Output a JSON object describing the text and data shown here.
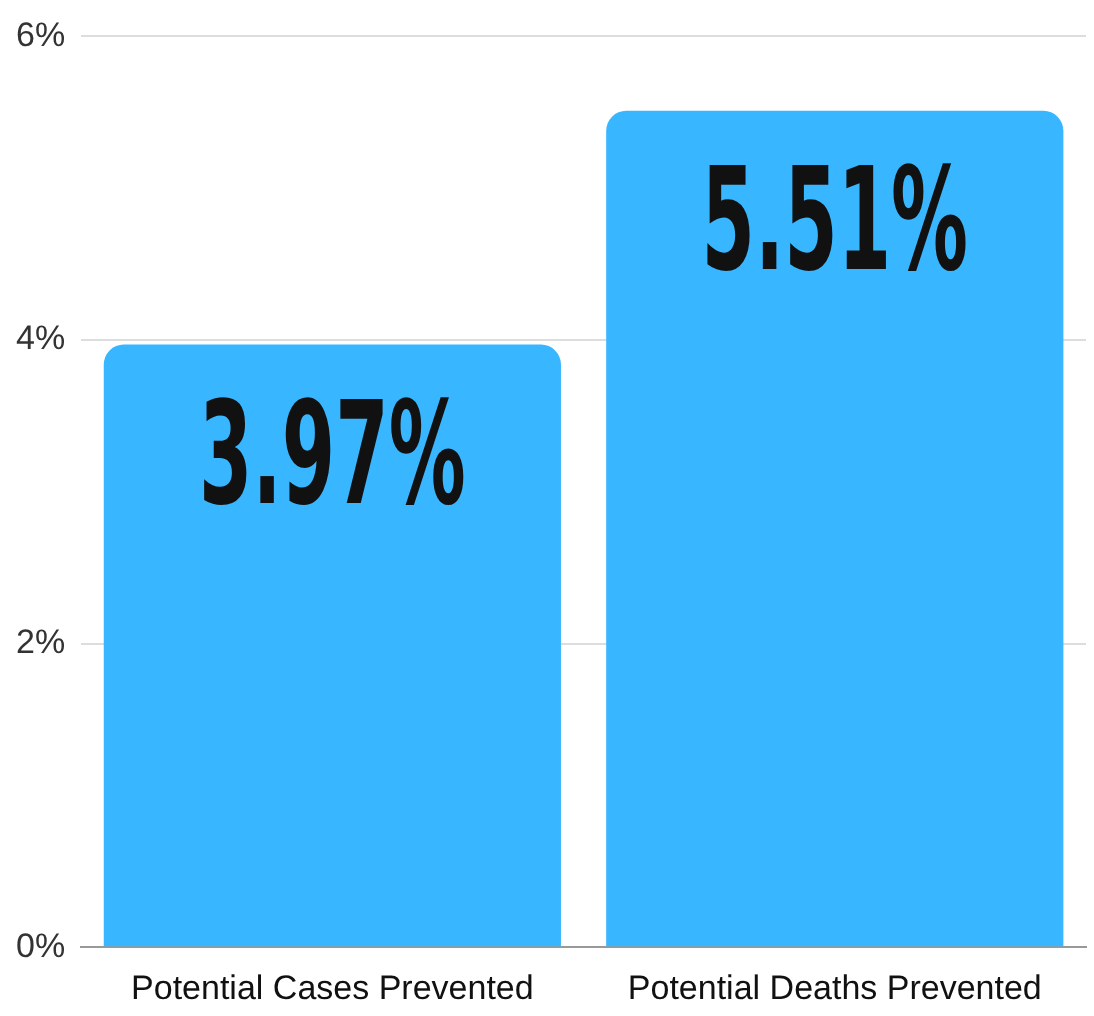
{
  "chart_data": {
    "type": "bar",
    "categories": [
      "Potential Cases Prevented",
      "Potential Deaths Prevented"
    ],
    "values": [
      3.97,
      5.51
    ],
    "color": "#38b6ff",
    "value_labels": [
      "3.97%",
      "5.51%"
    ],
    "ylim": [
      0,
      6
    ],
    "yticks": [
      {
        "value": 0,
        "label": "0%"
      },
      {
        "value": 2,
        "label": "2%"
      },
      {
        "value": 4,
        "label": "4%"
      },
      {
        "value": 6,
        "label": "6%"
      }
    ],
    "grid": "y",
    "legend": false
  }
}
